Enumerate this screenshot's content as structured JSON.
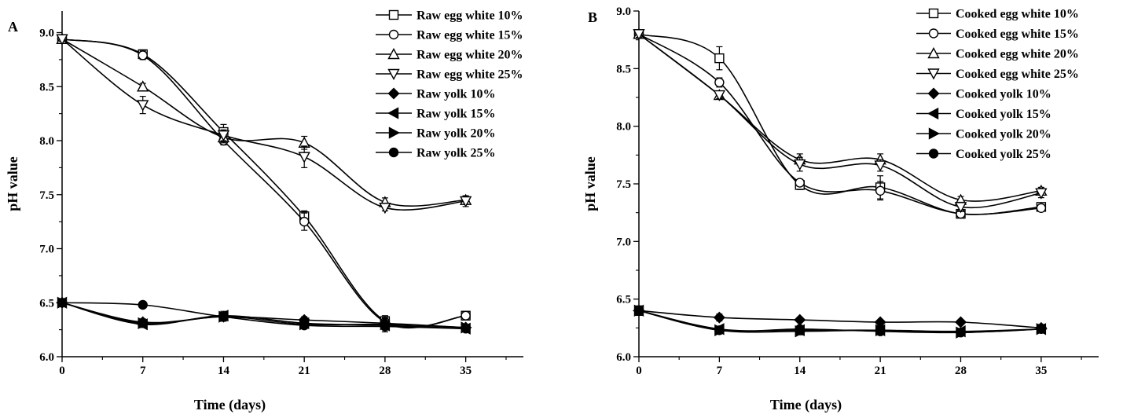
{
  "chart_data": [
    {
      "type": "line",
      "panel_label": "A",
      "xlabel": "Time (days)",
      "ylabel": "pH value",
      "xlim": [
        0,
        40
      ],
      "ylim": [
        6.0,
        9.2
      ],
      "x_ticks": [
        0,
        7,
        14,
        21,
        28,
        35
      ],
      "y_ticks": [
        6.0,
        6.5,
        7.0,
        7.5,
        8.0,
        8.5,
        9.0
      ],
      "y_tick_labels": [
        "6.0",
        "6.5",
        "7.0",
        "7.5",
        "8.0",
        "8.5",
        "9.0"
      ],
      "legend_position": "top-right",
      "grid": false,
      "x": [
        0,
        7,
        14,
        21,
        28,
        35
      ],
      "series": [
        {
          "name": "Raw egg white 10%",
          "marker": "square-open",
          "values": [
            8.94,
            8.8,
            8.08,
            7.3,
            6.33,
            6.38
          ],
          "errors": [
            0.02,
            0.04,
            0.07,
            0.05,
            0.05,
            0.04
          ]
        },
        {
          "name": "Raw egg white 15%",
          "marker": "circle-open",
          "values": [
            8.94,
            8.79,
            8.0,
            7.25,
            6.32,
            6.38
          ],
          "errors": [
            0.02,
            0.04,
            0.04,
            0.08,
            0.04,
            0.04
          ]
        },
        {
          "name": "Raw egg white 20%",
          "marker": "triangle-up-open",
          "values": [
            8.94,
            8.5,
            8.03,
            7.98,
            7.43,
            7.45
          ],
          "errors": [
            0.02,
            0.03,
            0.05,
            0.06,
            0.04,
            0.04
          ]
        },
        {
          "name": "Raw egg white 25%",
          "marker": "triangle-down-open",
          "values": [
            8.94,
            8.33,
            8.05,
            7.85,
            7.38,
            7.44
          ],
          "errors": [
            0.02,
            0.08,
            0.05,
            0.1,
            0.03,
            0.05
          ]
        },
        {
          "name": "Raw yolk 10%",
          "marker": "diamond-filled",
          "values": [
            6.5,
            6.32,
            6.37,
            6.34,
            6.31,
            6.27
          ],
          "errors": [
            0.02,
            0.03,
            0.04,
            0.03,
            0.04,
            0.02
          ]
        },
        {
          "name": "Raw yolk 15%",
          "marker": "triangle-left-filled",
          "values": [
            6.5,
            6.3,
            6.38,
            6.31,
            6.29,
            6.26
          ],
          "errors": [
            0.02,
            0.03,
            0.04,
            0.03,
            0.04,
            0.02
          ]
        },
        {
          "name": "Raw yolk 20%",
          "marker": "triangle-right-filled",
          "values": [
            6.5,
            6.31,
            6.37,
            6.3,
            6.3,
            6.27
          ],
          "errors": [
            0.02,
            0.03,
            0.04,
            0.03,
            0.03,
            0.02
          ]
        },
        {
          "name": "Raw yolk 25%",
          "marker": "circle-filled",
          "values": [
            6.5,
            6.48,
            6.37,
            6.29,
            6.28,
            6.26
          ],
          "errors": [
            0.02,
            0.02,
            0.04,
            0.03,
            0.05,
            0.02
          ]
        }
      ]
    },
    {
      "type": "line",
      "panel_label": "B",
      "xlabel": "Time (days)",
      "ylabel": "pH value",
      "xlim": [
        0,
        40
      ],
      "ylim": [
        6.0,
        9.0
      ],
      "x_ticks": [
        0,
        7,
        14,
        21,
        28,
        35
      ],
      "y_ticks": [
        6.0,
        6.5,
        7.0,
        7.5,
        8.0,
        8.5,
        9.0
      ],
      "y_tick_labels": [
        "6.0",
        "6.5",
        "7.0",
        "7.5",
        "8.0",
        "8.5",
        "9.0"
      ],
      "legend_position": "top-right",
      "grid": false,
      "x": [
        0,
        7,
        14,
        21,
        28,
        35
      ],
      "series": [
        {
          "name": "Cooked egg white 10%",
          "marker": "square-open",
          "values": [
            8.8,
            8.59,
            7.49,
            7.47,
            7.24,
            7.3
          ],
          "errors": [
            0.03,
            0.1,
            0.04,
            0.1,
            0.03,
            0.03
          ]
        },
        {
          "name": "Cooked egg white 15%",
          "marker": "circle-open",
          "values": [
            8.8,
            8.38,
            7.51,
            7.44,
            7.24,
            7.29
          ],
          "errors": [
            0.03,
            0.04,
            0.03,
            0.08,
            0.03,
            0.03
          ]
        },
        {
          "name": "Cooked egg white 20%",
          "marker": "triangle-up-open",
          "values": [
            8.8,
            8.27,
            7.71,
            7.71,
            7.36,
            7.44
          ],
          "errors": [
            0.03,
            0.03,
            0.05,
            0.05,
            0.03,
            0.03
          ]
        },
        {
          "name": "Cooked egg white 25%",
          "marker": "triangle-down-open",
          "values": [
            8.8,
            8.27,
            7.67,
            7.66,
            7.3,
            7.42
          ],
          "errors": [
            0.03,
            0.03,
            0.06,
            0.05,
            0.04,
            0.04
          ]
        },
        {
          "name": "Cooked yolk 10%",
          "marker": "diamond-filled",
          "values": [
            6.4,
            6.34,
            6.32,
            6.3,
            6.3,
            6.25
          ],
          "errors": [
            0.04,
            0.03,
            0.02,
            0.02,
            0.02,
            0.03
          ]
        },
        {
          "name": "Cooked yolk 15%",
          "marker": "triangle-left-filled",
          "values": [
            6.4,
            6.24,
            6.23,
            6.23,
            6.22,
            6.24
          ],
          "errors": [
            0.04,
            0.02,
            0.03,
            0.02,
            0.02,
            0.02
          ]
        },
        {
          "name": "Cooked yolk 20%",
          "marker": "triangle-right-filled",
          "values": [
            6.4,
            6.23,
            6.22,
            6.23,
            6.21,
            6.24
          ],
          "errors": [
            0.04,
            0.02,
            0.03,
            0.02,
            0.02,
            0.02
          ]
        },
        {
          "name": "Cooked yolk 25%",
          "marker": "circle-filled",
          "values": [
            6.4,
            6.23,
            6.24,
            6.22,
            6.21,
            6.24
          ],
          "errors": [
            0.04,
            0.02,
            0.02,
            0.02,
            0.02,
            0.02
          ]
        }
      ]
    }
  ]
}
